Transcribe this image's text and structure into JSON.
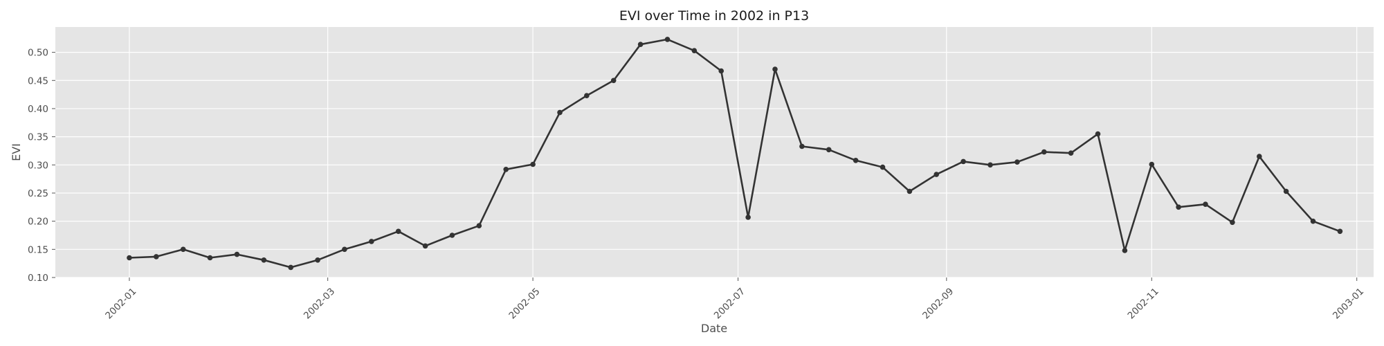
{
  "chart_data": {
    "type": "line",
    "title": "EVI over Time in 2002 in P13",
    "xlabel": "Date",
    "ylabel": "EVI",
    "xlim": [
      "2001-12-10",
      "2003-01-06"
    ],
    "ylim": [
      0.1,
      0.545
    ],
    "grid": true,
    "x_ticks": [
      "2002-01",
      "2002-03",
      "2002-05",
      "2002-07",
      "2002-09",
      "2002-11",
      "2003-01"
    ],
    "y_ticks": [
      "0.10",
      "0.15",
      "0.20",
      "0.25",
      "0.30",
      "0.35",
      "0.40",
      "0.45",
      "0.50"
    ],
    "series": [
      {
        "x": [
          "2002-01-01",
          "2002-01-09",
          "2002-01-17",
          "2002-01-25",
          "2002-02-02",
          "2002-02-10",
          "2002-02-18",
          "2002-02-26",
          "2002-03-06",
          "2002-03-14",
          "2002-03-22",
          "2002-03-30",
          "2002-04-07",
          "2002-04-15",
          "2002-04-23",
          "2002-05-01",
          "2002-05-09",
          "2002-05-17",
          "2002-05-25",
          "2002-06-02",
          "2002-06-10",
          "2002-06-18",
          "2002-06-26",
          "2002-07-04",
          "2002-07-12",
          "2002-07-20",
          "2002-07-28",
          "2002-08-05",
          "2002-08-13",
          "2002-08-21",
          "2002-08-29",
          "2002-09-06",
          "2002-09-14",
          "2002-09-22",
          "2002-09-30",
          "2002-10-08",
          "2002-10-16",
          "2002-10-24",
          "2002-11-01",
          "2002-11-09",
          "2002-11-17",
          "2002-11-25",
          "2002-12-03",
          "2002-12-11",
          "2002-12-19",
          "2002-12-27"
        ],
        "values": [
          0.135,
          0.137,
          0.15,
          0.135,
          0.141,
          0.131,
          0.118,
          0.131,
          0.15,
          0.164,
          0.182,
          0.156,
          0.175,
          0.192,
          0.292,
          0.301,
          0.393,
          0.423,
          0.45,
          0.514,
          0.523,
          0.503,
          0.467,
          0.207,
          0.47,
          0.333,
          0.327,
          0.308,
          0.296,
          0.253,
          0.283,
          0.306,
          0.3,
          0.305,
          0.323,
          0.321,
          0.355,
          0.148,
          0.301,
          0.225,
          0.23,
          0.198,
          0.315,
          0.253,
          0.2,
          0.182
        ]
      }
    ]
  }
}
